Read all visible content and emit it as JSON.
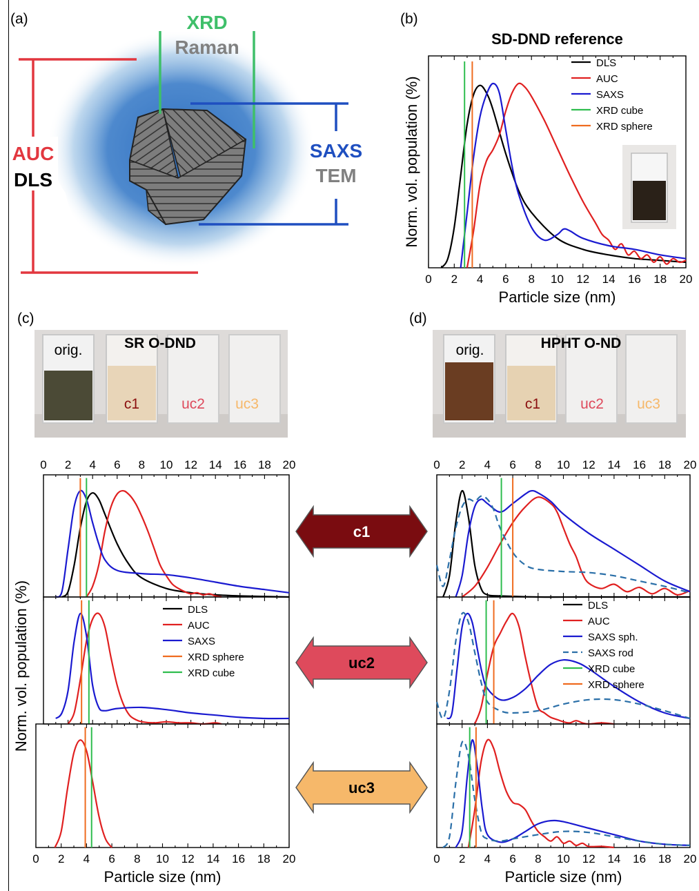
{
  "panel_labels": {
    "a": "(a)",
    "b": "(b)",
    "c": "(c)",
    "d": "(d)"
  },
  "schematic": {
    "xrd": "XRD",
    "raman": "Raman",
    "auc": "AUC",
    "dls": "DLS",
    "saxs": "SAXS",
    "tem": "TEM",
    "colors": {
      "red": "#e2373f",
      "green": "#3fbf6a",
      "gray": "#808080",
      "blue": "#1f4fc0",
      "halo": "#3a78c6"
    }
  },
  "colors": {
    "DLS": "#000000",
    "AUC": "#e02020",
    "SAXS": "#1a1ad0",
    "SAXS rod": "#2a6fa8",
    "XRD cube": "#2ebd4e",
    "XRD sphere": "#ef6b1f"
  },
  "photos": {
    "c": {
      "title": "SR O-DND",
      "labels": [
        "orig.",
        "c1",
        "uc2",
        "uc3"
      ]
    },
    "d": {
      "title": "HPHT O-ND",
      "labels": [
        "orig.",
        "c1",
        "uc2",
        "uc3"
      ]
    }
  },
  "arrows": [
    {
      "label": "c1",
      "color": "#7a0c10"
    },
    {
      "label": "uc2",
      "color": "#de4a5c"
    },
    {
      "label": "uc3",
      "color": "#f6b86a"
    }
  ],
  "shared_ylabel": "Norm. vol. population (%)",
  "chart_data": [
    {
      "id": "b",
      "type": "line",
      "title": "SD-DND reference",
      "xlabel": "Particle size (nm)",
      "ylabel": "Norm. vol. population (%)",
      "xlim": [
        0,
        20
      ],
      "xticks": [
        0,
        2,
        4,
        6,
        8,
        10,
        12,
        14,
        16,
        18,
        20
      ],
      "legend": [
        "DLS",
        "AUC",
        "SAXS",
        "XRD cube",
        "XRD sphere"
      ],
      "legend_position": "top-right",
      "series": [
        {
          "name": "DLS",
          "x": [
            1,
            1.5,
            2,
            2.5,
            3,
            3.5,
            4,
            4.5,
            5,
            6,
            7,
            8,
            10,
            12,
            14,
            16,
            18,
            20
          ],
          "y": [
            0,
            0.05,
            0.22,
            0.5,
            0.78,
            0.94,
            0.99,
            0.95,
            0.86,
            0.62,
            0.42,
            0.3,
            0.16,
            0.1,
            0.07,
            0.05,
            0.04,
            0.03
          ]
        },
        {
          "name": "AUC",
          "x": [
            3,
            3.5,
            4,
            4.5,
            5,
            5.5,
            6,
            6.5,
            7,
            7.5,
            8,
            9,
            10,
            11,
            12,
            13,
            13.5,
            14,
            14.5,
            15,
            15.5,
            16,
            16.5,
            17,
            17.5,
            18,
            18.5,
            19,
            19.5,
            20
          ],
          "y": [
            0,
            0.2,
            0.45,
            0.58,
            0.64,
            0.72,
            0.85,
            0.95,
            1.0,
            0.98,
            0.93,
            0.8,
            0.65,
            0.5,
            0.36,
            0.24,
            0.18,
            0.15,
            0.1,
            0.13,
            0.07,
            0.09,
            0.05,
            0.07,
            0.03,
            0.06,
            0.02,
            0.05,
            0.03,
            0.04
          ]
        },
        {
          "name": "SAXS",
          "x": [
            2.5,
            3,
            3.5,
            4,
            4.5,
            5,
            5.5,
            6,
            6.5,
            7,
            8,
            9,
            10,
            10.5,
            11,
            12,
            14,
            16,
            18,
            20
          ],
          "y": [
            0,
            0.3,
            0.6,
            0.82,
            0.94,
            1.0,
            0.95,
            0.75,
            0.55,
            0.4,
            0.22,
            0.15,
            0.18,
            0.21,
            0.2,
            0.16,
            0.12,
            0.1,
            0.07,
            0.05
          ]
        },
        {
          "name": "XRD cube",
          "x": [
            2.8,
            2.8
          ],
          "y": [
            0,
            1.12
          ]
        },
        {
          "name": "XRD sphere",
          "x": [
            3.4,
            3.4
          ],
          "y": [
            0,
            1.12
          ]
        }
      ]
    },
    {
      "id": "c1",
      "type": "line",
      "xlim": [
        0,
        20
      ],
      "xticks": [
        0,
        2,
        4,
        6,
        8,
        10,
        12,
        14,
        16,
        18,
        20
      ],
      "series": [
        {
          "name": "DLS",
          "x": [
            1.5,
            2,
            2.5,
            3,
            3.5,
            4,
            4.5,
            5,
            6,
            7,
            8,
            10,
            12,
            14,
            16,
            20
          ],
          "y": [
            0,
            0.05,
            0.3,
            0.65,
            0.9,
            0.98,
            0.92,
            0.78,
            0.5,
            0.3,
            0.18,
            0.08,
            0.04,
            0.02,
            0.01,
            0.0
          ]
        },
        {
          "name": "AUC",
          "x": [
            3.5,
            4,
            4.5,
            5,
            5.5,
            6,
            6.5,
            7,
            7.5,
            8,
            8.5,
            9,
            9.5,
            10,
            10.5,
            11,
            11.5,
            12,
            12.5,
            13,
            13.5,
            14,
            14.5
          ],
          "y": [
            0,
            0.1,
            0.3,
            0.62,
            0.85,
            0.97,
            1.0,
            0.96,
            0.88,
            0.76,
            0.62,
            0.46,
            0.3,
            0.2,
            0.12,
            0.08,
            0.05,
            0.03,
            0.04,
            0.02,
            0.03,
            0.01,
            0.0
          ]
        },
        {
          "name": "SAXS",
          "x": [
            1,
            1.5,
            2,
            2.5,
            3,
            3.5,
            4,
            4.5,
            5,
            6,
            8,
            10,
            12,
            14,
            16,
            18,
            20
          ],
          "y": [
            0,
            0.05,
            0.45,
            0.85,
            1.0,
            0.92,
            0.7,
            0.5,
            0.35,
            0.25,
            0.22,
            0.21,
            0.18,
            0.14,
            0.1,
            0.07,
            0.04
          ]
        },
        {
          "name": "XRD sphere",
          "x": [
            3.0,
            3.0
          ],
          "y": [
            0,
            1.12
          ]
        },
        {
          "name": "XRD cube",
          "x": [
            3.5,
            3.5
          ],
          "y": [
            0,
            1.12
          ]
        }
      ]
    },
    {
      "id": "uc2",
      "type": "line",
      "xlim": [
        0,
        20
      ],
      "legend": [
        "DLS",
        "AUC",
        "SAXS",
        "XRD sphere",
        "XRD cube"
      ],
      "legend_position": "top-right",
      "series": [
        {
          "name": "AUC",
          "x": [
            2,
            2.5,
            3,
            3.5,
            4,
            4.5,
            5,
            5.5,
            6,
            6.5,
            7,
            7.5,
            8,
            9,
            10,
            11,
            12,
            13,
            14,
            14.5
          ],
          "y": [
            0,
            0.1,
            0.4,
            0.75,
            0.95,
            1.0,
            0.88,
            0.6,
            0.35,
            0.18,
            0.08,
            0.04,
            0.02,
            0.01,
            0.02,
            0.01,
            0.01,
            0.0,
            0.01,
            0.0
          ]
        },
        {
          "name": "SAXS",
          "x": [
            1,
            1.5,
            2,
            2.5,
            3,
            3.5,
            4,
            4.5,
            5,
            6,
            8,
            10,
            12,
            14,
            16,
            18,
            20
          ],
          "y": [
            0.05,
            0.1,
            0.3,
            0.75,
            1.0,
            0.8,
            0.35,
            0.15,
            0.12,
            0.14,
            0.15,
            0.13,
            0.1,
            0.08,
            0.06,
            0.05,
            0.05
          ]
        },
        {
          "name": "XRD sphere",
          "x": [
            3.1,
            3.1
          ],
          "y": [
            0,
            1.12
          ]
        },
        {
          "name": "XRD cube",
          "x": [
            3.7,
            3.7
          ],
          "y": [
            0,
            1.12
          ]
        }
      ]
    },
    {
      "id": "uc3",
      "type": "line",
      "xlim": [
        0,
        20
      ],
      "xticks": [
        0,
        2,
        4,
        6,
        8,
        10,
        12,
        14,
        16,
        18,
        20
      ],
      "xlabel": "Particle size (nm)",
      "series": [
        {
          "name": "AUC",
          "x": [
            1.5,
            2,
            2.5,
            3,
            3.5,
            4,
            4.5,
            5,
            5.5,
            6
          ],
          "y": [
            0,
            0.15,
            0.55,
            0.88,
            1.0,
            0.9,
            0.6,
            0.28,
            0.08,
            0.0
          ]
        },
        {
          "name": "XRD sphere",
          "x": [
            3.9,
            3.9
          ],
          "y": [
            0,
            1.12
          ]
        },
        {
          "name": "XRD cube",
          "x": [
            4.4,
            4.4
          ],
          "y": [
            0,
            1.12
          ]
        }
      ]
    },
    {
      "id": "d1",
      "type": "line",
      "xlim": [
        0,
        20
      ],
      "xticks": [
        0,
        2,
        4,
        6,
        8,
        10,
        12,
        14,
        16,
        18,
        20
      ],
      "series": [
        {
          "name": "DLS",
          "x": [
            0.5,
            1,
            1.5,
            2,
            2.5,
            3,
            3.5,
            4,
            5,
            8,
            12,
            20
          ],
          "y": [
            0,
            0.2,
            0.7,
            1.0,
            0.75,
            0.3,
            0.08,
            0.02,
            0.01,
            0.0,
            0.0,
            0.0
          ]
        },
        {
          "name": "AUC",
          "x": [
            2,
            3,
            4,
            5,
            6,
            7,
            8,
            9,
            9.5,
            10,
            10.5,
            11,
            11.5,
            12,
            13,
            14,
            15,
            16,
            17,
            18,
            19,
            20
          ],
          "y": [
            0,
            0.1,
            0.28,
            0.5,
            0.7,
            0.85,
            0.94,
            0.88,
            0.8,
            0.65,
            0.5,
            0.38,
            0.22,
            0.13,
            0.08,
            0.12,
            0.05,
            0.09,
            0.03,
            0.08,
            0.02,
            0.06
          ]
        },
        {
          "name": "SAXS sph.",
          "x": [
            1.5,
            2,
            2.5,
            3,
            3.5,
            4,
            5,
            6,
            7,
            7.5,
            8,
            9,
            10,
            12,
            14,
            16,
            18,
            20
          ],
          "y": [
            0,
            0.2,
            0.6,
            0.85,
            0.92,
            0.88,
            0.8,
            0.88,
            0.97,
            1.0,
            0.98,
            0.9,
            0.78,
            0.6,
            0.45,
            0.3,
            0.15,
            0.05
          ]
        },
        {
          "name": "SAXS rod",
          "x": [
            0,
            0.5,
            1,
            1.5,
            2,
            2.5,
            3,
            3.5,
            4,
            4.5,
            5,
            6,
            7,
            8,
            10,
            12,
            14,
            16,
            18,
            20
          ],
          "y": [
            0.3,
            0.1,
            0.35,
            0.65,
            0.85,
            0.92,
            0.9,
            0.95,
            0.92,
            0.82,
            0.65,
            0.42,
            0.3,
            0.26,
            0.24,
            0.23,
            0.2,
            0.15,
            0.1,
            0.04
          ]
        },
        {
          "name": "XRD cube",
          "x": [
            5.1,
            5.1
          ],
          "y": [
            0,
            1.12
          ]
        },
        {
          "name": "XRD sphere",
          "x": [
            6.0,
            6.0
          ],
          "y": [
            0,
            1.12
          ]
        }
      ]
    },
    {
      "id": "d2",
      "type": "line",
      "xlim": [
        0,
        20
      ],
      "legend": [
        "DLS",
        "AUC",
        "SAXS sph.",
        "SAXS rod",
        "XRD cube",
        "XRD sphere"
      ],
      "legend_position": "top-right",
      "series": [
        {
          "name": "AUC",
          "x": [
            3,
            3.5,
            4,
            4.5,
            5,
            5.5,
            6,
            6.5,
            7,
            7.5,
            8,
            8.5,
            9,
            9.5,
            10,
            10.5,
            11,
            11.5,
            12,
            13,
            14
          ],
          "y": [
            0,
            0.15,
            0.45,
            0.7,
            0.82,
            0.93,
            1.0,
            0.88,
            0.6,
            0.35,
            0.15,
            0.1,
            0.06,
            0.04,
            0.02,
            0.01,
            0.03,
            0.01,
            0.0,
            0.01,
            0.0
          ]
        },
        {
          "name": "SAXS sph.",
          "x": [
            0.8,
            1.2,
            1.6,
            2,
            2.4,
            2.8,
            3.2,
            3.6,
            4,
            5,
            6,
            7,
            8,
            9,
            10,
            11,
            12,
            14,
            16,
            18,
            20
          ],
          "y": [
            0.05,
            0.1,
            0.5,
            0.88,
            1.0,
            0.92,
            0.68,
            0.45,
            0.32,
            0.22,
            0.24,
            0.32,
            0.44,
            0.54,
            0.58,
            0.56,
            0.5,
            0.34,
            0.2,
            0.1,
            0.05
          ]
        },
        {
          "name": "SAXS rod",
          "x": [
            0,
            0.5,
            1,
            1.5,
            2,
            2.5,
            3,
            3.5,
            4,
            5,
            6,
            8,
            10,
            12,
            14,
            16,
            18,
            20
          ],
          "y": [
            0.2,
            0.05,
            0.3,
            0.75,
            1.0,
            0.92,
            0.65,
            0.38,
            0.2,
            0.12,
            0.1,
            0.12,
            0.18,
            0.22,
            0.22,
            0.18,
            0.12,
            0.05
          ]
        },
        {
          "name": "XRD cube",
          "x": [
            3.9,
            3.9
          ],
          "y": [
            0,
            1.12
          ]
        },
        {
          "name": "XRD sphere",
          "x": [
            4.5,
            4.5
          ],
          "y": [
            0,
            1.12
          ]
        }
      ]
    },
    {
      "id": "d3",
      "type": "line",
      "xlim": [
        0,
        20
      ],
      "xticks": [
        0,
        2,
        4,
        6,
        8,
        10,
        12,
        14,
        16,
        18,
        20
      ],
      "xlabel": "Particle size (nm)",
      "series": [
        {
          "name": "AUC",
          "x": [
            2.5,
            3,
            3.5,
            4,
            4.5,
            5,
            5.5,
            6,
            6.5,
            7,
            7.5,
            8,
            8.5,
            9,
            9.5,
            10,
            10.5,
            11,
            11.5,
            12,
            13,
            14
          ],
          "y": [
            0,
            0.35,
            0.8,
            1.0,
            0.92,
            0.7,
            0.52,
            0.42,
            0.4,
            0.35,
            0.24,
            0.15,
            0.1,
            0.06,
            0.1,
            0.04,
            0.06,
            0.02,
            0.04,
            0.01,
            0.01,
            0.0
          ]
        },
        {
          "name": "SAXS sph.",
          "x": [
            1.5,
            2,
            2.4,
            2.8,
            3.2,
            3.6,
            4,
            5,
            6,
            7,
            8,
            9,
            10,
            12,
            14,
            16,
            18,
            20
          ],
          "y": [
            0,
            0.15,
            0.65,
            1.0,
            0.75,
            0.35,
            0.12,
            0.05,
            0.08,
            0.15,
            0.22,
            0.25,
            0.24,
            0.18,
            0.12,
            0.06,
            0.03,
            0.02
          ]
        },
        {
          "name": "SAXS rod",
          "x": [
            0.5,
            1,
            1.5,
            2,
            2.5,
            3,
            3.5,
            4,
            5,
            6,
            8,
            10,
            12,
            14,
            16,
            18,
            20
          ],
          "y": [
            0,
            0.1,
            0.6,
            0.98,
            0.85,
            0.45,
            0.15,
            0.08,
            0.06,
            0.08,
            0.12,
            0.15,
            0.14,
            0.1,
            0.06,
            0.03,
            0.02
          ]
        },
        {
          "name": "XRD cube",
          "x": [
            2.6,
            2.6
          ],
          "y": [
            0,
            1.12
          ]
        },
        {
          "name": "XRD sphere",
          "x": [
            3.1,
            3.1
          ],
          "y": [
            0,
            1.12
          ]
        }
      ]
    }
  ]
}
